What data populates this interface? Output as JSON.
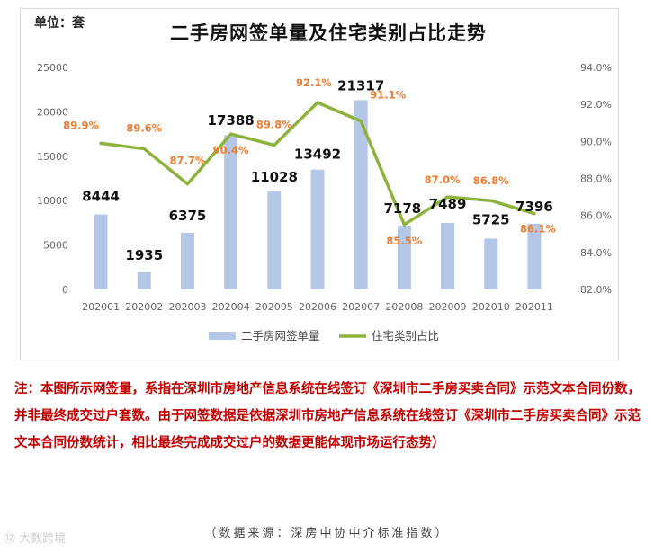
{
  "unit_label": "单位：套",
  "note": "注：本图所示网签量，系指在深圳市房地产信息系统在线签订《深圳市二手房买卖合同》示范文本合同份数， 并非最终成交过户套数。由于网签数据是依据深圳市房地产信息系统在线签订《深圳市二手房买卖合同》示范文本合同份数统计，相比最终完成成交过户的数据更能体现市场运行态势）",
  "source": "（数据来源：深房中协中介标准指数）",
  "watermark": "⑫ 大数跨境",
  "colors": {
    "bar": "#b4c7e7",
    "line": "#8db33c",
    "pct_label": "#ed7d31",
    "note": "#c00000"
  },
  "chart_data": {
    "type": "bar+line",
    "title": "二手房网签单量及住宅类别占比走势",
    "categories": [
      "202001",
      "202002",
      "202003",
      "202004",
      "202005",
      "202006",
      "202007",
      "202008",
      "202009",
      "202010",
      "202011"
    ],
    "series": [
      {
        "name": "二手房网签单量",
        "type": "bar",
        "axis": "left",
        "values": [
          8444,
          1935,
          6375,
          17388,
          11028,
          13492,
          21317,
          7178,
          7489,
          5725,
          7396
        ],
        "labels": [
          "8444",
          "1935",
          "6375",
          "17388",
          "11028",
          "13492",
          "21317",
          "7178",
          "7489",
          "5725",
          "7396"
        ]
      },
      {
        "name": "住宅类别占比",
        "type": "line",
        "axis": "right",
        "values": [
          89.9,
          89.6,
          87.7,
          90.4,
          89.8,
          92.1,
          91.1,
          85.5,
          87.0,
          86.8,
          86.1
        ],
        "labels": [
          "89.9%",
          "89.6%",
          "87.7%",
          "90.4%",
          "89.8%",
          "92.1%",
          "91.1%",
          "85.5%",
          "87.0%",
          "86.8%",
          "86.1%"
        ]
      }
    ],
    "y_left": {
      "ylim": [
        0,
        25000
      ],
      "ticks": [
        "0",
        "5000",
        "10000",
        "15000",
        "20000",
        "25000"
      ]
    },
    "y_right": {
      "ylim": [
        82,
        94
      ],
      "ticks": [
        "82.0%",
        "84.0%",
        "86.0%",
        "88.0%",
        "90.0%",
        "92.0%",
        "94.0%"
      ]
    },
    "grid": false,
    "legend": "bottom"
  }
}
